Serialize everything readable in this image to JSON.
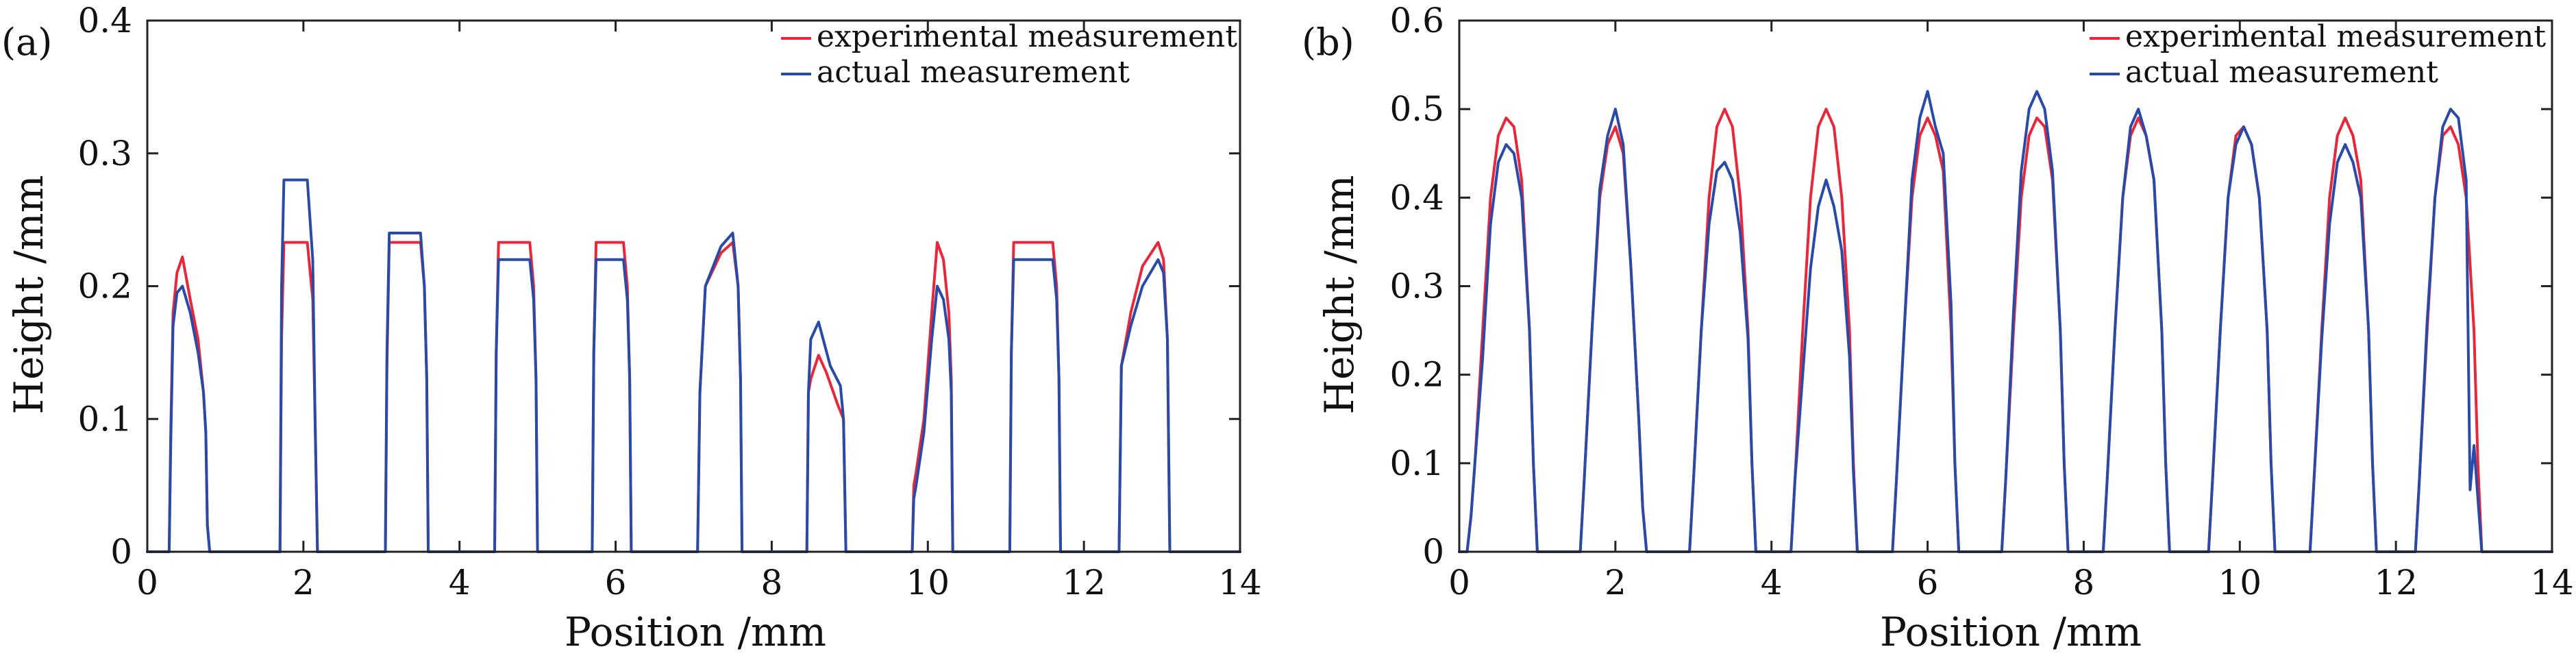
{
  "chart_data": [
    {
      "type": "line",
      "panel_label": "(a)",
      "xlabel": "Position /mm",
      "ylabel": "Height /mm",
      "xlim": [
        0,
        14
      ],
      "ylim": [
        0,
        0.4
      ],
      "xticks": [
        0,
        2,
        4,
        6,
        8,
        10,
        12,
        14
      ],
      "xtick_labels": [
        "0",
        "2",
        "4",
        "6",
        "8",
        "10",
        "12",
        "14"
      ],
      "yticks": [
        0,
        0.1,
        0.2,
        0.3,
        0.4
      ],
      "ytick_labels": [
        "0",
        "0.1",
        "0.2",
        "0.3",
        "0.4"
      ],
      "grid": false,
      "legend_position": "top-right",
      "series": [
        {
          "name": "experimental measurement",
          "color": "#e8283a",
          "x": [
            0,
            0.28,
            0.3,
            0.33,
            0.38,
            0.45,
            0.55,
            0.65,
            0.72,
            0.75,
            0.77,
            0.8,
            1.7,
            1.72,
            1.75,
            2.05,
            2.12,
            2.15,
            2.18,
            3.05,
            3.07,
            3.1,
            3.5,
            3.55,
            3.58,
            3.6,
            4.45,
            4.47,
            4.5,
            4.9,
            4.95,
            4.98,
            5.0,
            5.7,
            5.72,
            5.75,
            6.1,
            6.15,
            6.18,
            6.2,
            7.05,
            7.08,
            7.15,
            7.35,
            7.5,
            7.57,
            7.6,
            7.62,
            8.45,
            8.47,
            8.5,
            8.6,
            8.7,
            8.85,
            8.92,
            8.95,
            9.8,
            9.82,
            9.85,
            9.95,
            10.05,
            10.12,
            10.2,
            10.27,
            10.3,
            10.32,
            11.05,
            11.07,
            11.1,
            11.6,
            11.65,
            11.68,
            11.7,
            12.45,
            12.48,
            12.6,
            12.75,
            12.95,
            13.02,
            13.07,
            13.1,
            14.0
          ],
          "y": [
            0,
            0,
            0.09,
            0.18,
            0.21,
            0.222,
            0.19,
            0.16,
            0.12,
            0.09,
            0.02,
            0,
            0,
            0.16,
            0.233,
            0.233,
            0.19,
            0.1,
            0,
            0,
            0.14,
            0.233,
            0.233,
            0.2,
            0.13,
            0,
            0,
            0.15,
            0.233,
            0.233,
            0.2,
            0.13,
            0,
            0,
            0.15,
            0.233,
            0.233,
            0.2,
            0.13,
            0,
            0,
            0.12,
            0.2,
            0.225,
            0.233,
            0.2,
            0.13,
            0,
            0,
            0.12,
            0.13,
            0.148,
            0.135,
            0.11,
            0.1,
            0,
            0,
            0.05,
            0.06,
            0.1,
            0.18,
            0.233,
            0.22,
            0.18,
            0.13,
            0,
            0,
            0.15,
            0.233,
            0.233,
            0.2,
            0.13,
            0,
            0,
            0.14,
            0.18,
            0.215,
            0.233,
            0.22,
            0.16,
            0,
            0
          ]
        },
        {
          "name": "actual measurement",
          "color": "#2a4aa8",
          "x": [
            0,
            0.28,
            0.3,
            0.33,
            0.38,
            0.45,
            0.55,
            0.65,
            0.72,
            0.75,
            0.77,
            0.8,
            1.7,
            1.72,
            1.75,
            2.05,
            2.12,
            2.15,
            2.18,
            3.05,
            3.07,
            3.1,
            3.5,
            3.55,
            3.58,
            3.6,
            4.45,
            4.47,
            4.5,
            4.9,
            4.95,
            4.98,
            5.0,
            5.7,
            5.72,
            5.75,
            6.1,
            6.15,
            6.18,
            6.2,
            7.05,
            7.08,
            7.15,
            7.35,
            7.5,
            7.57,
            7.6,
            7.62,
            8.45,
            8.47,
            8.5,
            8.6,
            8.75,
            8.88,
            8.92,
            8.95,
            9.8,
            9.82,
            9.85,
            9.95,
            10.05,
            10.12,
            10.2,
            10.27,
            10.3,
            10.32,
            11.05,
            11.07,
            11.1,
            11.6,
            11.65,
            11.68,
            11.7,
            12.45,
            12.48,
            12.6,
            12.75,
            12.95,
            13.02,
            13.07,
            13.1,
            14.0
          ],
          "y": [
            0,
            0,
            0.08,
            0.17,
            0.195,
            0.2,
            0.18,
            0.15,
            0.12,
            0.09,
            0.02,
            0,
            0,
            0.2,
            0.28,
            0.28,
            0.22,
            0.1,
            0,
            0,
            0.15,
            0.24,
            0.24,
            0.2,
            0.13,
            0,
            0,
            0.15,
            0.22,
            0.22,
            0.19,
            0.13,
            0,
            0,
            0.15,
            0.22,
            0.22,
            0.19,
            0.13,
            0,
            0,
            0.12,
            0.2,
            0.23,
            0.24,
            0.2,
            0.13,
            0,
            0,
            0.12,
            0.16,
            0.173,
            0.14,
            0.125,
            0.1,
            0,
            0,
            0.04,
            0.05,
            0.09,
            0.16,
            0.2,
            0.19,
            0.16,
            0.12,
            0,
            0,
            0.15,
            0.22,
            0.22,
            0.19,
            0.13,
            0,
            0,
            0.14,
            0.17,
            0.2,
            0.22,
            0.21,
            0.16,
            0,
            0
          ]
        }
      ]
    },
    {
      "type": "line",
      "panel_label": "(b)",
      "xlabel": "Position /mm",
      "ylabel": "Height /mm",
      "xlim": [
        0,
        14
      ],
      "ylim": [
        0,
        0.6
      ],
      "xticks": [
        0,
        2,
        4,
        6,
        8,
        10,
        12,
        14
      ],
      "xtick_labels": [
        "0",
        "2",
        "4",
        "6",
        "8",
        "10",
        "12",
        "14"
      ],
      "yticks": [
        0,
        0.1,
        0.2,
        0.3,
        0.4,
        0.5,
        0.6
      ],
      "ytick_labels": [
        "0",
        "0.1",
        "0.2",
        "0.3",
        "0.4",
        "0.5",
        "0.6"
      ],
      "grid": false,
      "legend_position": "top-right",
      "series": [
        {
          "name": "experimental measurement",
          "color": "#e8283a",
          "x": [
            0,
            0.1,
            0.15,
            0.2,
            0.3,
            0.4,
            0.5,
            0.6,
            0.7,
            0.8,
            0.9,
            0.95,
            1.0,
            1.55,
            1.6,
            1.7,
            1.8,
            1.9,
            2.0,
            2.1,
            2.2,
            2.3,
            2.35,
            2.4,
            2.95,
            3.0,
            3.1,
            3.2,
            3.3,
            3.4,
            3.5,
            3.6,
            3.7,
            3.75,
            3.8,
            4.25,
            4.3,
            4.4,
            4.5,
            4.6,
            4.7,
            4.8,
            4.9,
            5.0,
            5.05,
            5.1,
            5.55,
            5.6,
            5.7,
            5.8,
            5.9,
            6.0,
            6.1,
            6.2,
            6.3,
            6.35,
            6.4,
            6.95,
            7.0,
            7.1,
            7.2,
            7.3,
            7.4,
            7.5,
            7.6,
            7.7,
            7.75,
            7.8,
            8.25,
            8.3,
            8.4,
            8.5,
            8.6,
            8.7,
            8.8,
            8.9,
            9.0,
            9.05,
            9.1,
            9.6,
            9.65,
            9.75,
            9.85,
            9.95,
            10.05,
            10.15,
            10.25,
            10.35,
            10.4,
            10.45,
            10.9,
            10.95,
            11.05,
            11.15,
            11.25,
            11.35,
            11.45,
            11.55,
            11.65,
            11.7,
            11.75,
            12.25,
            12.3,
            12.4,
            12.5,
            12.6,
            12.7,
            12.8,
            12.9,
            13.0,
            13.05,
            13.1,
            14.0
          ],
          "y": [
            0,
            0,
            0.04,
            0.1,
            0.25,
            0.4,
            0.47,
            0.49,
            0.48,
            0.42,
            0.25,
            0.1,
            0,
            0,
            0.08,
            0.25,
            0.4,
            0.46,
            0.48,
            0.45,
            0.32,
            0.15,
            0.05,
            0,
            0,
            0.08,
            0.25,
            0.4,
            0.48,
            0.5,
            0.48,
            0.4,
            0.25,
            0.1,
            0,
            0,
            0.08,
            0.25,
            0.4,
            0.48,
            0.5,
            0.48,
            0.4,
            0.25,
            0.1,
            0,
            0,
            0.08,
            0.25,
            0.4,
            0.47,
            0.49,
            0.47,
            0.43,
            0.25,
            0.1,
            0,
            0,
            0.08,
            0.25,
            0.4,
            0.47,
            0.49,
            0.48,
            0.42,
            0.25,
            0.1,
            0,
            0,
            0.08,
            0.25,
            0.4,
            0.47,
            0.49,
            0.47,
            0.42,
            0.25,
            0.1,
            0,
            0,
            0.08,
            0.25,
            0.4,
            0.47,
            0.48,
            0.46,
            0.4,
            0.25,
            0.1,
            0,
            0,
            0.08,
            0.25,
            0.4,
            0.47,
            0.49,
            0.47,
            0.42,
            0.25,
            0.1,
            0,
            0,
            0.08,
            0.25,
            0.4,
            0.47,
            0.48,
            0.46,
            0.4,
            0.25,
            0.1,
            0,
            0
          ]
        },
        {
          "name": "actual measurement",
          "color": "#2a4aa8",
          "x": [
            0,
            0.1,
            0.15,
            0.2,
            0.3,
            0.4,
            0.5,
            0.6,
            0.7,
            0.8,
            0.9,
            0.95,
            1.0,
            1.55,
            1.6,
            1.7,
            1.8,
            1.9,
            2.0,
            2.1,
            2.2,
            2.3,
            2.35,
            2.4,
            2.95,
            3.0,
            3.1,
            3.2,
            3.3,
            3.4,
            3.5,
            3.6,
            3.7,
            3.75,
            3.8,
            4.25,
            4.3,
            4.4,
            4.5,
            4.6,
            4.7,
            4.8,
            4.9,
            5.0,
            5.05,
            5.1,
            5.55,
            5.6,
            5.7,
            5.8,
            5.9,
            6.0,
            6.1,
            6.2,
            6.3,
            6.35,
            6.4,
            6.95,
            7.0,
            7.1,
            7.2,
            7.3,
            7.4,
            7.5,
            7.6,
            7.7,
            7.75,
            7.8,
            8.25,
            8.3,
            8.4,
            8.5,
            8.6,
            8.7,
            8.8,
            8.9,
            9.0,
            9.05,
            9.1,
            9.6,
            9.65,
            9.75,
            9.85,
            9.95,
            10.05,
            10.15,
            10.25,
            10.35,
            10.4,
            10.45,
            10.9,
            10.95,
            11.05,
            11.15,
            11.25,
            11.35,
            11.45,
            11.55,
            11.65,
            11.7,
            11.75,
            12.25,
            12.3,
            12.4,
            12.5,
            12.6,
            12.7,
            12.8,
            12.9,
            12.95,
            13.0,
            13.05,
            13.1,
            14.0
          ],
          "y": [
            0,
            0,
            0.04,
            0.1,
            0.22,
            0.37,
            0.44,
            0.46,
            0.45,
            0.4,
            0.25,
            0.1,
            0,
            0,
            0.08,
            0.25,
            0.41,
            0.47,
            0.5,
            0.46,
            0.32,
            0.15,
            0.05,
            0,
            0,
            0.08,
            0.25,
            0.37,
            0.43,
            0.44,
            0.42,
            0.36,
            0.24,
            0.1,
            0,
            0,
            0.08,
            0.2,
            0.32,
            0.39,
            0.42,
            0.39,
            0.34,
            0.22,
            0.09,
            0,
            0,
            0.08,
            0.25,
            0.42,
            0.49,
            0.52,
            0.48,
            0.45,
            0.28,
            0.1,
            0,
            0,
            0.08,
            0.27,
            0.43,
            0.5,
            0.52,
            0.5,
            0.43,
            0.25,
            0.1,
            0,
            0,
            0.08,
            0.25,
            0.4,
            0.48,
            0.5,
            0.47,
            0.42,
            0.25,
            0.1,
            0,
            0,
            0.08,
            0.25,
            0.4,
            0.46,
            0.48,
            0.46,
            0.4,
            0.25,
            0.1,
            0,
            0,
            0.08,
            0.24,
            0.37,
            0.44,
            0.46,
            0.44,
            0.4,
            0.25,
            0.1,
            0,
            0,
            0.08,
            0.26,
            0.4,
            0.48,
            0.5,
            0.49,
            0.42,
            0.07,
            0.12,
            0.06,
            0,
            0
          ]
        }
      ]
    }
  ]
}
